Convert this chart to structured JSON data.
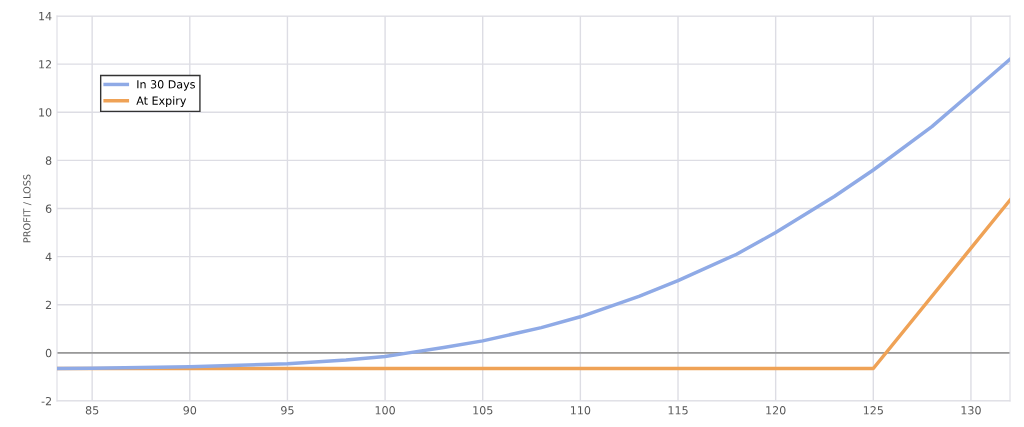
{
  "chart_data": {
    "type": "line",
    "ylabel": "PROFIT / LOSS",
    "series": [
      {
        "name": "In 30 Days",
        "color": "#8faae6",
        "x": [
          83.2,
          85,
          90,
          95,
          98,
          100,
          101.2,
          103,
          105,
          108,
          110,
          113,
          115,
          118,
          120,
          123,
          125,
          128,
          130,
          132
        ],
        "values": [
          -0.65,
          -0.64,
          -0.58,
          -0.45,
          -0.3,
          -0.15,
          0,
          0.22,
          0.5,
          1.05,
          1.5,
          2.35,
          3.0,
          4.1,
          5.0,
          6.5,
          7.6,
          9.4,
          10.8,
          12.2
        ]
      },
      {
        "name": "At Expiry",
        "color": "#efa256",
        "x": [
          83.2,
          125,
          132
        ],
        "values": [
          -0.65,
          -0.65,
          6.35
        ]
      }
    ],
    "xlim": [
      83.2,
      132
    ],
    "xticks": [
      85,
      90,
      95,
      100,
      105,
      110,
      115,
      120,
      125,
      130
    ],
    "ylim": [
      -2,
      14
    ],
    "yticks": [
      -2,
      0,
      2,
      4,
      6,
      8,
      10,
      12,
      14
    ],
    "ref_lines": [
      {
        "axis": "y",
        "value": 0,
        "color": "#999999"
      }
    ],
    "grid": true,
    "legend": "top left",
    "marker": "none",
    "line_style": "solid"
  }
}
